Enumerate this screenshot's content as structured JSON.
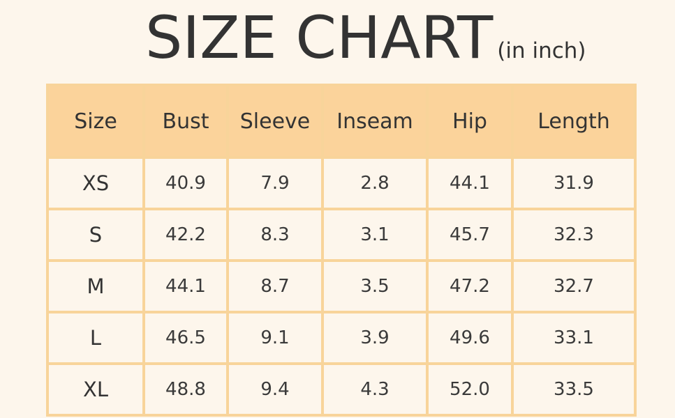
{
  "header": {
    "title": "SIZE CHART",
    "unit_note": "(in inch)"
  },
  "colors": {
    "background": "#fdf6ec",
    "header_fill": "#fbd39b",
    "border": "#f8d49a",
    "text": "#333333"
  },
  "chart_data": {
    "type": "table",
    "title": "SIZE CHART",
    "subtitle": "(in inch)",
    "columns": [
      "Size",
      "Bust",
      "Sleeve",
      "Inseam",
      "Hip",
      "Length"
    ],
    "rows": [
      [
        "XS",
        "40.9",
        "7.9",
        "2.8",
        "44.1",
        "31.9"
      ],
      [
        "S",
        "42.2",
        "8.3",
        "3.1",
        "45.7",
        "32.3"
      ],
      [
        "M",
        "44.1",
        "8.7",
        "3.5",
        "47.2",
        "32.7"
      ],
      [
        "L",
        "46.5",
        "9.1",
        "3.9",
        "49.6",
        "33.1"
      ],
      [
        "XL",
        "48.8",
        "9.4",
        "4.3",
        "52.0",
        "33.5"
      ]
    ]
  }
}
